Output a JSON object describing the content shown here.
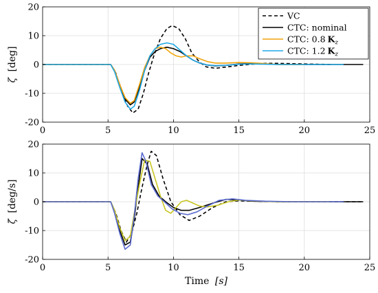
{
  "chart_data": [
    {
      "type": "line",
      "ylabel_symbol": "ζ",
      "ylabel_unit": "[deg]",
      "xlabel": "",
      "xlim": [
        0,
        25
      ],
      "ylim": [
        -20,
        20
      ],
      "xticks": [
        "0",
        "5",
        "10",
        "15",
        "20",
        "25"
      ],
      "yticks": [
        "-20",
        "-10",
        "0",
        "10",
        "20"
      ],
      "grid": true,
      "legend_position": "top-right",
      "series": [
        {
          "name": "VC",
          "color": "#000000",
          "dash": true,
          "x": [
            0,
            5.2,
            5.6,
            6.0,
            6.5,
            6.9,
            7.3,
            7.7,
            8.1,
            8.5,
            9.0,
            9.5,
            9.9,
            10.4,
            10.9,
            11.4,
            12.0,
            12.5,
            13.2,
            14.0,
            15.0,
            16.0,
            17.0,
            18.0,
            20.0,
            22.0
          ],
          "y": [
            0,
            0,
            -3,
            -9,
            -14.5,
            -16.8,
            -15.5,
            -10,
            -3,
            3,
            9,
            12.5,
            13.5,
            12.5,
            9,
            4,
            0.8,
            -0.8,
            -1.3,
            -0.9,
            -0.3,
            0.1,
            0.4,
            0.4,
            0.2,
            0
          ]
        },
        {
          "name": "CTC: nominal",
          "color": "#000000",
          "x": [
            0,
            5.2,
            5.5,
            5.9,
            6.3,
            6.7,
            7.0,
            7.4,
            7.8,
            8.2,
            8.6,
            9.0,
            9.5,
            10.0,
            10.5,
            11.0,
            11.5,
            12.0,
            12.6,
            13.2,
            14.0,
            15.0,
            16.0,
            17.0,
            18.0,
            20.0,
            24.5
          ],
          "y": [
            0,
            0,
            -2,
            -7,
            -12,
            -14,
            -13,
            -8,
            -2,
            2.5,
            4.5,
            5.5,
            6,
            5.5,
            4.5,
            3,
            1.5,
            0.5,
            -0.2,
            -0.5,
            -0.3,
            0.2,
            0.3,
            0.2,
            0,
            0,
            0
          ]
        },
        {
          "name": "CTC: 0.8",
          "name_extra": "K",
          "name_sub": "z",
          "color": "#f0a30a",
          "x": [
            0,
            5.2,
            5.5,
            5.9,
            6.3,
            6.7,
            7.0,
            7.4,
            7.8,
            8.2,
            8.6,
            9.0,
            9.4,
            9.8,
            10.2,
            10.6,
            11.0,
            11.5,
            12.0,
            12.6,
            13.2,
            14.0,
            15.0,
            16.0,
            17.0,
            18.0,
            19.0,
            20.0
          ],
          "y": [
            0,
            0,
            -2,
            -7,
            -11.5,
            -13.5,
            -12.5,
            -7,
            -1,
            3,
            5.5,
            6,
            5.5,
            4,
            3,
            2.6,
            3,
            3,
            2,
            1,
            0.5,
            0.5,
            0.7,
            0.6,
            0.3,
            0,
            0,
            0
          ]
        },
        {
          "name": "CTC: 1.2",
          "name_extra": "K",
          "name_sub": "z",
          "color": "#1ea7e6",
          "x": [
            0,
            5.2,
            5.5,
            5.9,
            6.3,
            6.7,
            7.0,
            7.4,
            7.8,
            8.2,
            8.6,
            9.0,
            9.5,
            10.0,
            10.5,
            11.0,
            11.5,
            12.0,
            12.6,
            13.2,
            14.0,
            15.0,
            16.0,
            17.0,
            18.0,
            20.0,
            23.0
          ],
          "y": [
            0,
            0,
            -2.5,
            -8,
            -13,
            -15.5,
            -14.5,
            -9,
            -2,
            3,
            5.5,
            7,
            7.5,
            7,
            5,
            3,
            1.5,
            0.5,
            -0.2,
            -0.4,
            -0.3,
            0.1,
            0.2,
            0.1,
            0,
            0,
            0
          ]
        }
      ]
    },
    {
      "type": "line",
      "ylabel_symbol": "ζ̇",
      "ylabel_unit": "[deg/s]",
      "xlabel_text": "Time",
      "xlabel_unit": "[s]",
      "xlim": [
        0,
        25
      ],
      "ylim": [
        -20,
        20
      ],
      "xticks": [
        "0",
        "5",
        "10",
        "15",
        "20",
        "25"
      ],
      "yticks": [
        "-20",
        "-10",
        "0",
        "10",
        "20"
      ],
      "grid": true,
      "series": [
        {
          "name": "VC",
          "color": "#000000",
          "dash": true,
          "x": [
            0,
            5.2,
            5.6,
            6.0,
            6.4,
            6.8,
            7.2,
            7.6,
            8.0,
            8.3,
            8.7,
            9.2,
            9.8,
            10.5,
            11.2,
            12.0,
            13.0,
            14.0,
            15.0,
            16.0,
            18.0,
            20.0,
            24.5
          ],
          "y": [
            0,
            0,
            -4,
            -10,
            -14,
            -11,
            -4,
            5,
            13,
            17.5,
            16,
            8,
            0,
            -4.5,
            -6.5,
            -5,
            -2,
            0,
            0.3,
            0.2,
            0,
            0,
            0
          ]
        },
        {
          "name": "CTC: nominal",
          "color": "#000000",
          "x": [
            0,
            5.2,
            5.5,
            5.9,
            6.3,
            6.7,
            7.0,
            7.3,
            7.6,
            8.0,
            8.4,
            8.9,
            9.4,
            10.0,
            10.6,
            11.2,
            12.0,
            13.0,
            14.0,
            15.0,
            16.0,
            18.0,
            24.5
          ],
          "y": [
            0,
            0,
            -3,
            -10,
            -15,
            -14,
            -6,
            5,
            15,
            13,
            6,
            2,
            0,
            -2,
            -3,
            -3,
            -2,
            -0.5,
            0.8,
            0.6,
            0.2,
            0,
            0
          ]
        },
        {
          "name": "CTC: 0.8 Kz",
          "color": "#c8c620",
          "x": [
            0,
            5.2,
            5.5,
            5.9,
            6.3,
            6.7,
            7.0,
            7.4,
            7.8,
            8.2,
            8.6,
            9.0,
            9.4,
            9.8,
            10.2,
            10.6,
            11.0,
            11.5,
            12.0,
            12.6,
            13.4,
            14.2,
            15.0,
            16.0,
            18.0,
            22.0
          ],
          "y": [
            0,
            0,
            -3,
            -9,
            -13.5,
            -12,
            -4,
            6,
            14.5,
            14,
            8,
            2,
            -3,
            -4,
            -2,
            0,
            0.5,
            -0.5,
            -1.5,
            -1.8,
            -1.2,
            0,
            0.6,
            0.3,
            0,
            0
          ]
        },
        {
          "name": "CTC: 1.2 Kz",
          "color": "#5a6ad0",
          "x": [
            0,
            5.2,
            5.5,
            5.9,
            6.3,
            6.7,
            7.0,
            7.3,
            7.6,
            7.9,
            8.3,
            8.8,
            9.3,
            9.9,
            10.5,
            11.1,
            11.8,
            12.6,
            13.5,
            14.5,
            15.5,
            17.0,
            19.0,
            23.0
          ],
          "y": [
            0,
            0,
            -4,
            -11,
            -16.5,
            -15,
            -5,
            8,
            17,
            14,
            6,
            2,
            0,
            -2.5,
            -4,
            -4.5,
            -3.5,
            -1.5,
            0.5,
            1,
            0.5,
            0.2,
            0,
            0
          ]
        }
      ]
    }
  ]
}
